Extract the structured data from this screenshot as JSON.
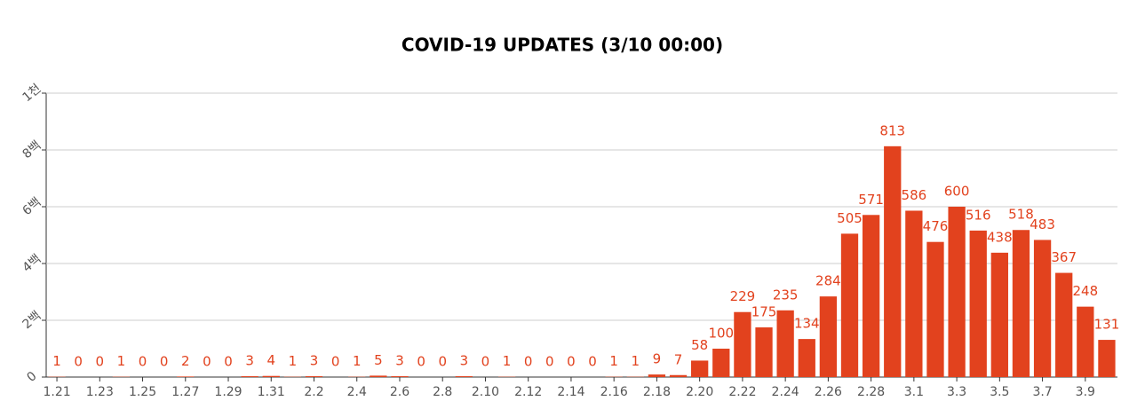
{
  "chart_data": {
    "type": "bar",
    "title": "COVID-19 UPDATES (3/10 00:00)",
    "categories": [
      "1.21",
      null,
      "1.23",
      null,
      "1.25",
      null,
      "1.27",
      null,
      "1.29",
      null,
      "1.31",
      null,
      "2.2",
      null,
      "2.4",
      null,
      "2.6",
      null,
      "2.8",
      null,
      "2.10",
      null,
      "2.12",
      null,
      "2.14",
      null,
      "2.16",
      null,
      "2.18",
      null,
      "2.20",
      null,
      "2.22",
      null,
      "2.24",
      null,
      "2.26",
      null,
      "2.28",
      null,
      "3.1",
      null,
      "3.3",
      null,
      "3.5",
      null,
      "3.7",
      null,
      "3.9",
      null
    ],
    "values": [
      1,
      0,
      0,
      1,
      0,
      0,
      2,
      0,
      0,
      3,
      4,
      1,
      3,
      0,
      1,
      5,
      3,
      0,
      0,
      3,
      0,
      1,
      0,
      0,
      0,
      0,
      1,
      1,
      9,
      7,
      58,
      100,
      229,
      175,
      235,
      134,
      284,
      505,
      571,
      813,
      586,
      476,
      600,
      516,
      438,
      518,
      483,
      367,
      248,
      131
    ],
    "color": "#e2421e",
    "ylim": [
      0,
      1000
    ],
    "yticks": [
      0,
      {
        "value": 200,
        "label": "2백"
      },
      {
        "value": 400,
        "label": "4백"
      },
      {
        "value": 600,
        "label": "6백"
      },
      {
        "value": 800,
        "label": "8백"
      },
      {
        "value": 1000,
        "label": "1천"
      }
    ],
    "grid": true
  }
}
